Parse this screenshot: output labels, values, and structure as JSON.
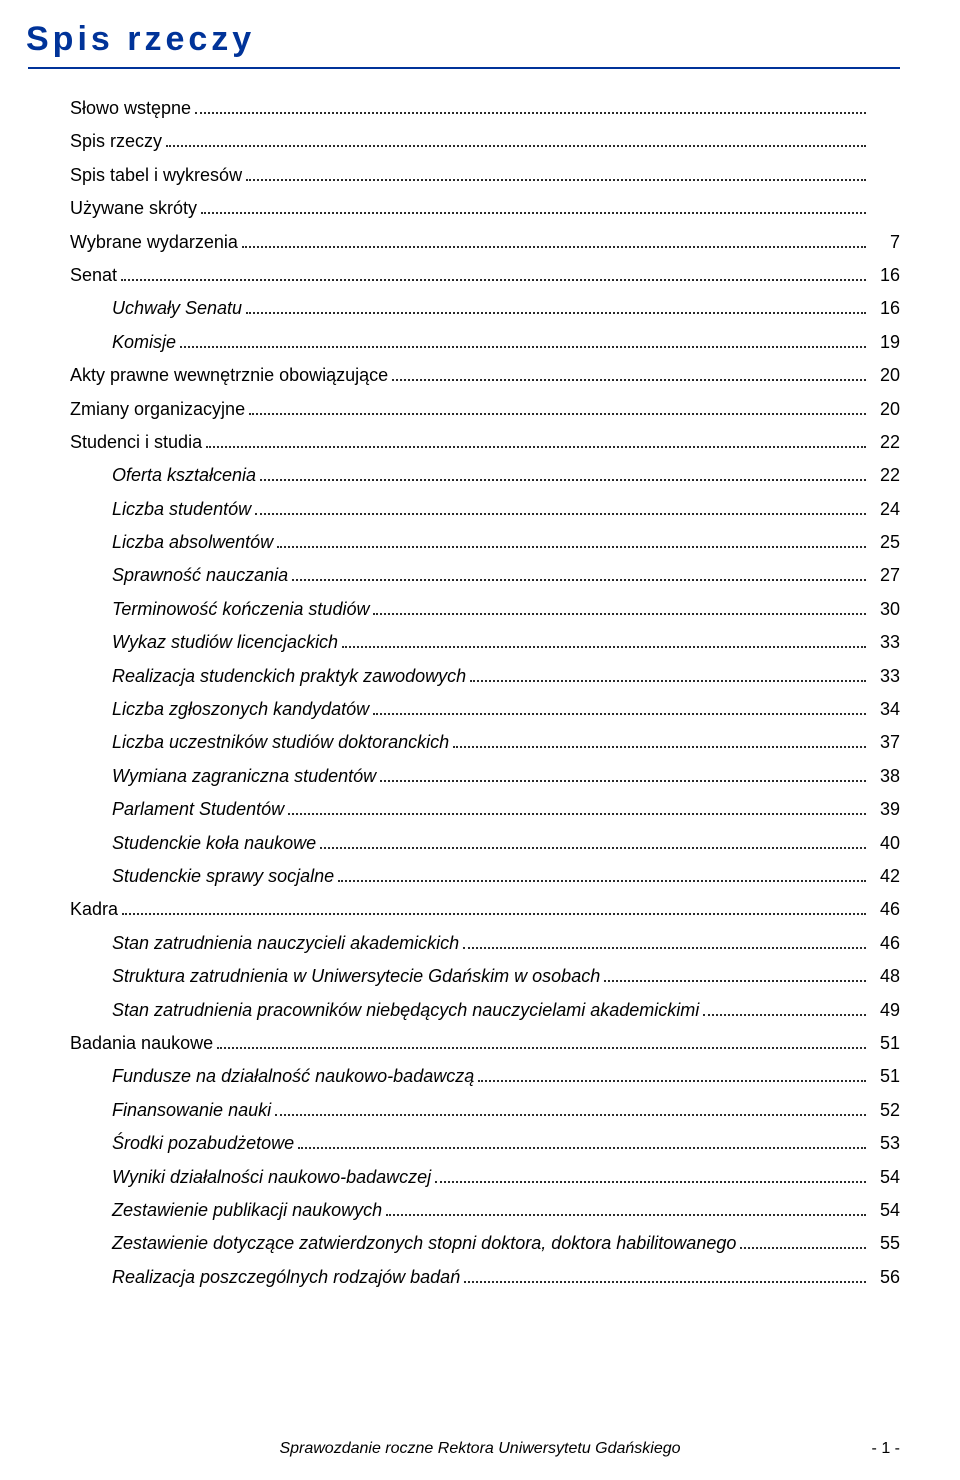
{
  "document_title": "Spis rzeczy",
  "title_color": "#003399",
  "rule_color": "#003399",
  "footer_text": "Sprawozdanie roczne Rektora Uniwersytetu Gdańskiego",
  "footer_page": "- 1 -",
  "toc": [
    {
      "label": "Słowo wstępne",
      "page": "",
      "indent": false,
      "italic": false
    },
    {
      "label": "Spis rzeczy",
      "page": "",
      "indent": false,
      "italic": false
    },
    {
      "label": "Spis tabel i wykresów",
      "page": "",
      "indent": false,
      "italic": false
    },
    {
      "label": "Używane skróty",
      "page": "",
      "indent": false,
      "italic": false
    },
    {
      "label": "Wybrane wydarzenia",
      "page": "7",
      "indent": false,
      "italic": false
    },
    {
      "label": "Senat",
      "page": "16",
      "indent": false,
      "italic": false
    },
    {
      "label": "Uchwały Senatu",
      "page": "16",
      "indent": true,
      "italic": true
    },
    {
      "label": "Komisje",
      "page": "19",
      "indent": true,
      "italic": true
    },
    {
      "label": "Akty prawne wewnętrznie obowiązujące",
      "page": "20",
      "indent": false,
      "italic": false
    },
    {
      "label": "Zmiany organizacyjne",
      "page": "20",
      "indent": false,
      "italic": false
    },
    {
      "label": "Studenci i studia",
      "page": "22",
      "indent": false,
      "italic": false
    },
    {
      "label": "Oferta kształcenia",
      "page": "22",
      "indent": true,
      "italic": true
    },
    {
      "label": "Liczba studentów",
      "page": "24",
      "indent": true,
      "italic": true
    },
    {
      "label": "Liczba absolwentów",
      "page": "25",
      "indent": true,
      "italic": true
    },
    {
      "label": "Sprawność nauczania",
      "page": "27",
      "indent": true,
      "italic": true
    },
    {
      "label": "Terminowość kończenia studiów",
      "page": "30",
      "indent": true,
      "italic": true
    },
    {
      "label": "Wykaz studiów licencjackich",
      "page": "33",
      "indent": true,
      "italic": true
    },
    {
      "label": "Realizacja studenckich praktyk zawodowych",
      "page": "33",
      "indent": true,
      "italic": true
    },
    {
      "label": "Liczba zgłoszonych kandydatów",
      "page": "34",
      "indent": true,
      "italic": true
    },
    {
      "label": "Liczba uczestników studiów doktoranckich",
      "page": "37",
      "indent": true,
      "italic": true
    },
    {
      "label": "Wymiana zagraniczna studentów",
      "page": "38",
      "indent": true,
      "italic": true
    },
    {
      "label": "Parlament Studentów",
      "page": "39",
      "indent": true,
      "italic": true
    },
    {
      "label": "Studenckie koła naukowe",
      "page": "40",
      "indent": true,
      "italic": true
    },
    {
      "label": "Studenckie sprawy socjalne",
      "page": "42",
      "indent": true,
      "italic": true
    },
    {
      "label": "Kadra",
      "page": "46",
      "indent": false,
      "italic": false
    },
    {
      "label": "Stan zatrudnienia nauczycieli akademickich",
      "page": "46",
      "indent": true,
      "italic": true
    },
    {
      "label": "Struktura zatrudnienia w Uniwersytecie Gdańskim w osobach",
      "page": "48",
      "indent": true,
      "italic": true
    },
    {
      "label": "Stan zatrudnienia pracowników niebędących nauczycielami akademickimi",
      "page": "49",
      "indent": true,
      "italic": true
    },
    {
      "label": "Badania naukowe",
      "page": "51",
      "indent": false,
      "italic": false
    },
    {
      "label": "Fundusze na działalność naukowo-badawczą",
      "page": "51",
      "indent": true,
      "italic": true
    },
    {
      "label": "Finansowanie nauki",
      "page": "52",
      "indent": true,
      "italic": true
    },
    {
      "label": "Środki pozabudżetowe",
      "page": "53",
      "indent": true,
      "italic": true
    },
    {
      "label": "Wyniki działalności naukowo-badawczej",
      "page": "54",
      "indent": true,
      "italic": true
    },
    {
      "label": "Zestawienie publikacji naukowych",
      "page": "54",
      "indent": true,
      "italic": true
    },
    {
      "label": "Zestawienie dotyczące zatwierdzonych stopni doktora, doktora habilitowanego",
      "page": "55",
      "indent": true,
      "italic": true
    },
    {
      "label": "Realizacja poszczególnych rodzajów badań",
      "page": "56",
      "indent": true,
      "italic": true
    }
  ]
}
